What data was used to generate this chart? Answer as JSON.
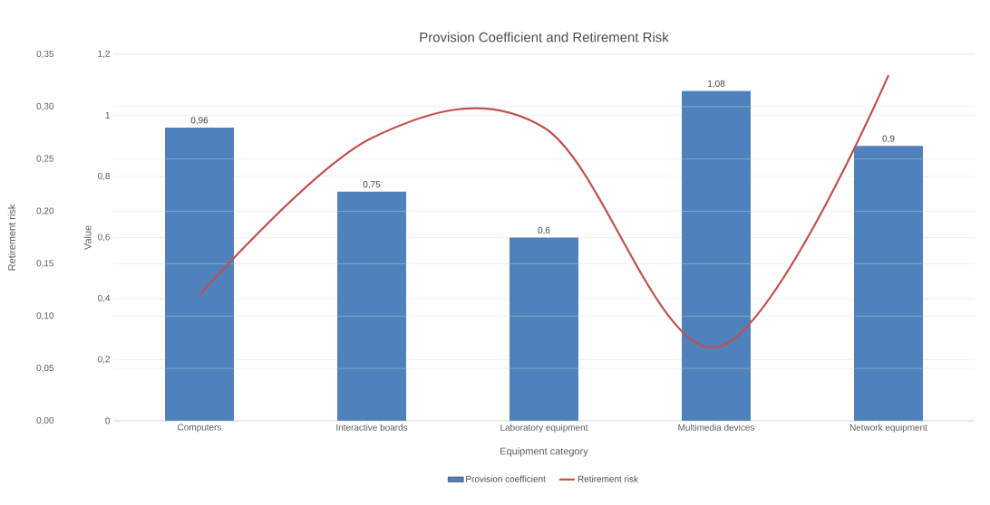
{
  "chart_data": {
    "type": "bar",
    "title": "Provision Coefficient and Retirement Risk",
    "xlabel": "Equipment category",
    "ylabel": "Value",
    "y2label": "Retirement risk",
    "categories": [
      "Computers",
      "Interactive boards",
      "Laboratory equipment",
      "Multimedia devices",
      "Network equipment"
    ],
    "series": [
      {
        "name": "Provision coefficient",
        "color": "#4f81bd",
        "values": [
          0.96,
          0.75,
          0.6,
          1.08,
          0.9
        ],
        "value_labels": [
          "0,96",
          "0,75",
          "0,6",
          "1,08",
          "0,9"
        ]
      },
      {
        "name": "Retirement risk",
        "type": "line",
        "axis": "y2",
        "color": "#c0504d",
        "values": [
          0.12,
          0.27,
          0.28,
          0.07,
          0.33
        ]
      }
    ],
    "ylim": [
      0,
      1.2
    ],
    "yticks": [
      0,
      {
        "value": 0.2,
        "label": "0,2"
      },
      {
        "value": 0.4,
        "label": "0,4"
      },
      {
        "value": 0.6,
        "label": "0,6"
      },
      {
        "value": 0.8,
        "label": "0,8"
      },
      1,
      {
        "value": 1.2,
        "label": "1,2"
      }
    ],
    "y2lim": [
      0,
      0.35
    ],
    "y2ticks": [
      {
        "value": 0,
        "label": "0,00"
      },
      {
        "value": 0.05,
        "label": "0,05"
      },
      {
        "value": 0.1,
        "label": "0,10"
      },
      {
        "value": 0.15,
        "label": "0,15"
      },
      {
        "value": 0.2,
        "label": "0,20"
      },
      {
        "value": 0.25,
        "label": "0,25"
      },
      {
        "value": 0.3,
        "label": "0,30"
      },
      {
        "value": 0.35,
        "label": "0,35"
      }
    ],
    "grid": "y",
    "legend": "bottom"
  }
}
